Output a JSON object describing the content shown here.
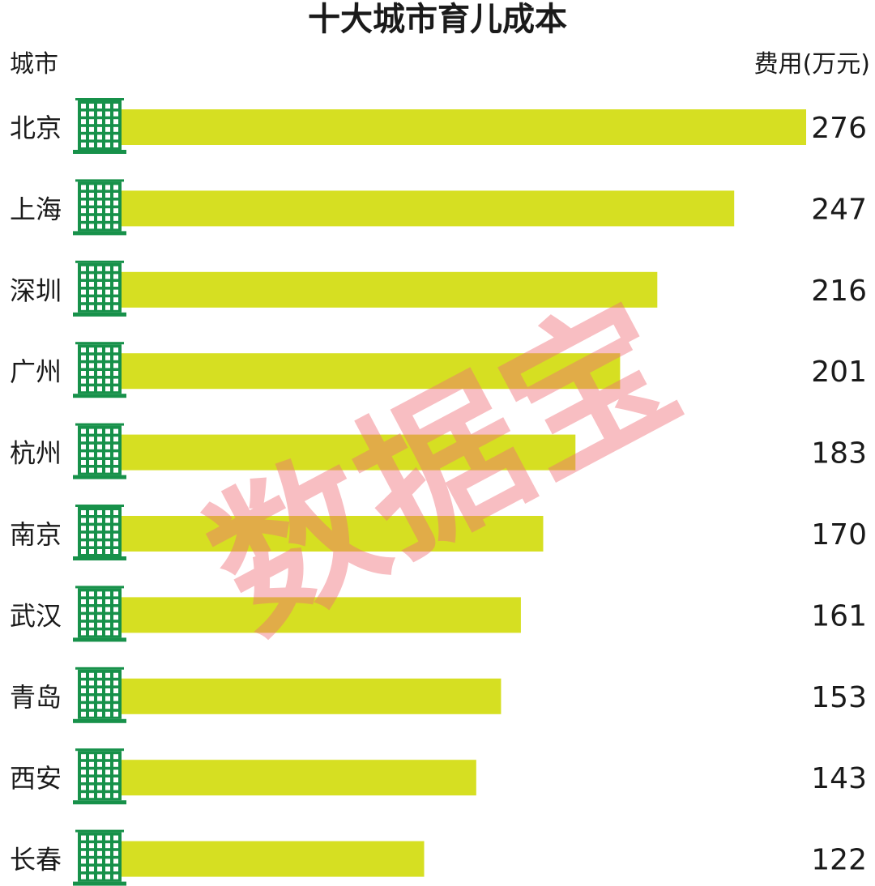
{
  "chart_data": {
    "type": "bar",
    "orientation": "horizontal",
    "title": "十大城市育儿成本",
    "xlabel": "费用(万元)",
    "ylabel": "城市",
    "categories": [
      "北京",
      "上海",
      "深圳",
      "广州",
      "杭州",
      "南京",
      "武汉",
      "青岛",
      "西安",
      "长春"
    ],
    "values": [
      276,
      247,
      216,
      201,
      183,
      170,
      161,
      153,
      143,
      122
    ],
    "grid": false,
    "legend": "none"
  },
  "watermark": "数据宝",
  "colors": {
    "bar": "#d6df22",
    "icon": "#17914a",
    "watermark": "#f06e78"
  },
  "icon_name": "building-icon"
}
